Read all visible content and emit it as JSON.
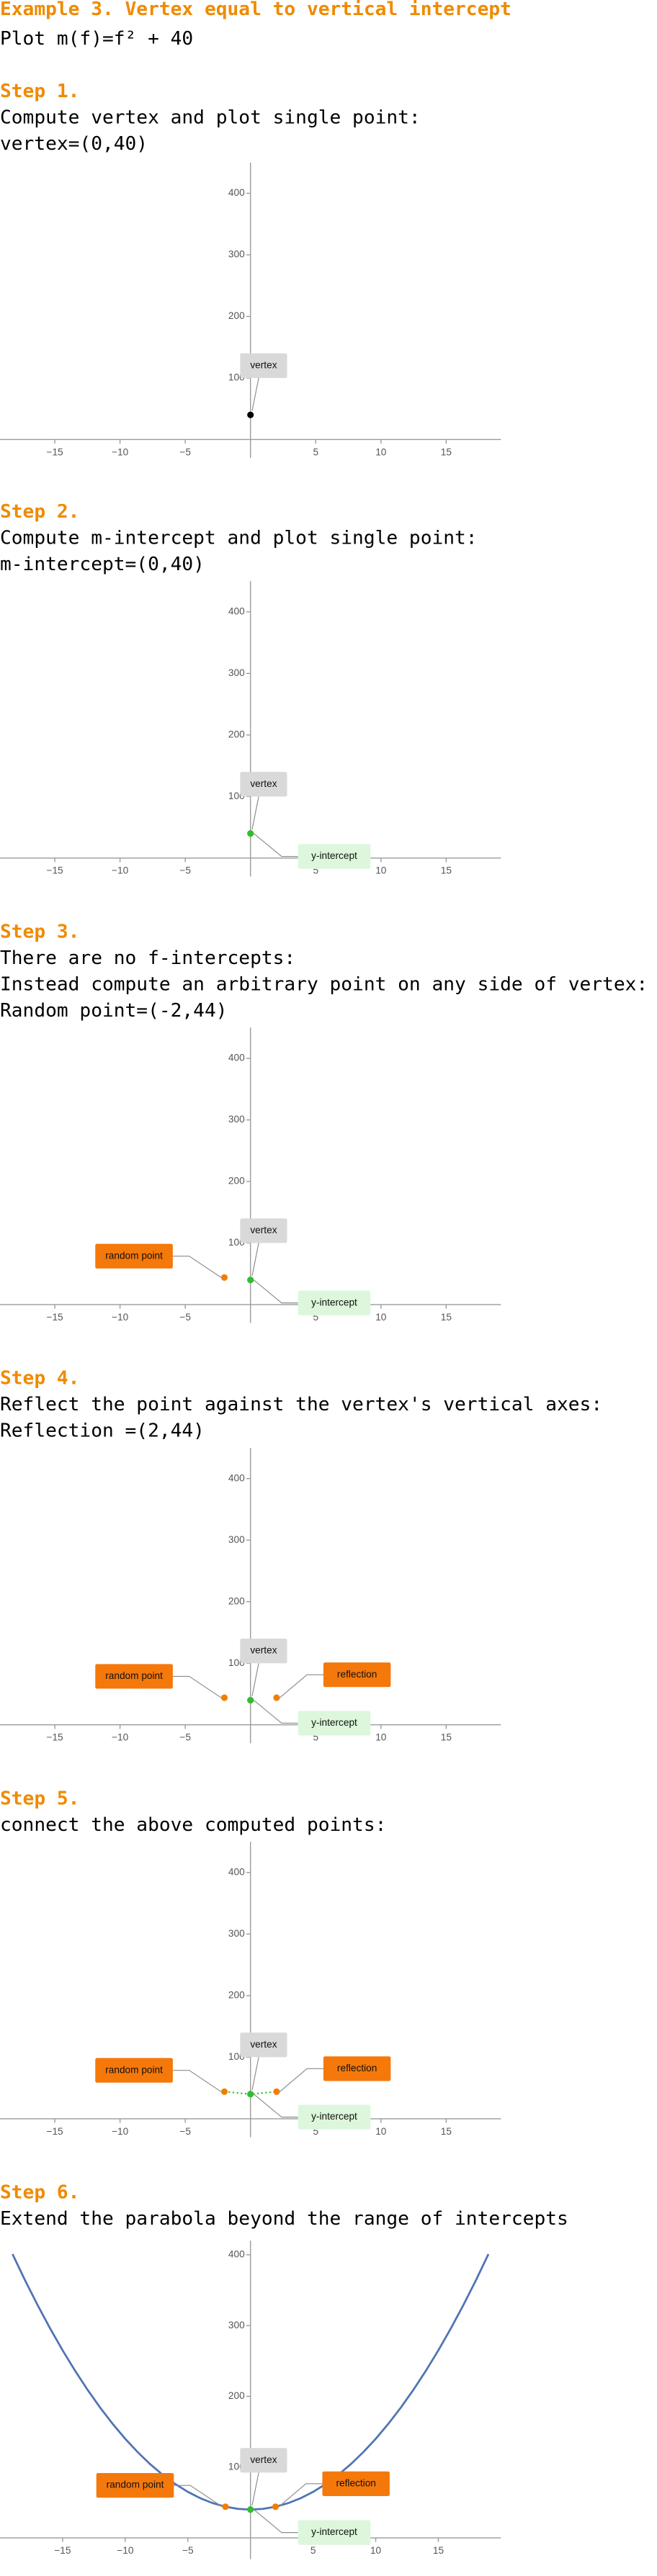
{
  "header": {
    "title": "Example 3. Vertex equal to vertical intercept",
    "subtitle": "Plot m(f)=f² + 40"
  },
  "steps": [
    {
      "heading": "Step 1.",
      "lines": [
        "Compute vertex and plot single point:",
        "vertex=(0,40)"
      ]
    },
    {
      "heading": "Step 2.",
      "lines": [
        "Compute m-intercept and plot single point:",
        "m-intercept=(0,40)"
      ]
    },
    {
      "heading": "Step 3.",
      "lines": [
        "There are no f-intercepts:",
        "Instead compute an arbitrary point on any side of vertex:",
        "Random point=(-2,44)"
      ]
    },
    {
      "heading": "Step 4.",
      "lines": [
        "Reflect the point against the vertex's vertical axes:",
        "Reflection =(2,44)"
      ]
    },
    {
      "heading": "Step 5.",
      "lines": [
        "connect the above computed points:"
      ]
    },
    {
      "heading": "Step 6.",
      "lines": [
        "Extend the parabola beyond the range of intercepts"
      ]
    }
  ],
  "chart_data": [
    {
      "type": "scatter",
      "xlim": [
        -19.2,
        19.2
      ],
      "ylim": [
        -30,
        450
      ],
      "xticks": [
        {
          "value": -15,
          "label": "−15"
        },
        {
          "value": -10,
          "label": "−10"
        },
        {
          "value": -5,
          "label": "−5"
        },
        5,
        10,
        15
      ],
      "yticks": [
        100,
        200,
        300,
        400
      ],
      "series": [
        {
          "name": "vertex",
          "color": "#000000",
          "x": [
            0
          ],
          "values": [
            40
          ]
        }
      ]
    },
    {
      "type": "scatter",
      "xlim": [
        -19.2,
        19.2
      ],
      "ylim": [
        -30,
        450
      ],
      "xticks": [
        {
          "value": -15,
          "label": "−15"
        },
        {
          "value": -10,
          "label": "−10"
        },
        {
          "value": -5,
          "label": "−5"
        },
        5,
        10,
        15
      ],
      "yticks": [
        100,
        200,
        300,
        400
      ],
      "series": [
        {
          "name": "vertex",
          "color": "#2fbf2f",
          "x": [
            0
          ],
          "values": [
            40
          ]
        },
        {
          "name": "y-intercept",
          "color": "#2fbf2f",
          "x": [
            0
          ],
          "values": [
            40
          ]
        }
      ]
    },
    {
      "type": "scatter",
      "xlim": [
        -19.2,
        19.2
      ],
      "ylim": [
        -30,
        450
      ],
      "xticks": [
        {
          "value": -15,
          "label": "−15"
        },
        {
          "value": -10,
          "label": "−10"
        },
        {
          "value": -5,
          "label": "−5"
        },
        5,
        10,
        15
      ],
      "yticks": [
        100,
        200,
        300,
        400
      ],
      "series": [
        {
          "name": "vertex",
          "color": "#2fbf2f",
          "x": [
            0
          ],
          "values": [
            40
          ]
        },
        {
          "name": "y-intercept",
          "color": "#2fbf2f",
          "x": [
            0
          ],
          "values": [
            40
          ]
        },
        {
          "name": "random point",
          "color": "#f07f00",
          "x": [
            -2
          ],
          "values": [
            44
          ]
        }
      ]
    },
    {
      "type": "scatter",
      "xlim": [
        -19.2,
        19.2
      ],
      "ylim": [
        -30,
        450
      ],
      "xticks": [
        {
          "value": -15,
          "label": "−15"
        },
        {
          "value": -10,
          "label": "−10"
        },
        {
          "value": -5,
          "label": "−5"
        },
        5,
        10,
        15
      ],
      "yticks": [
        100,
        200,
        300,
        400
      ],
      "series": [
        {
          "name": "vertex",
          "color": "#2fbf2f",
          "x": [
            0
          ],
          "values": [
            40
          ]
        },
        {
          "name": "y-intercept",
          "color": "#2fbf2f",
          "x": [
            0
          ],
          "values": [
            40
          ]
        },
        {
          "name": "random point",
          "color": "#f07f00",
          "x": [
            -2
          ],
          "values": [
            44
          ]
        },
        {
          "name": "reflection",
          "color": "#f07f00",
          "x": [
            2
          ],
          "values": [
            44
          ]
        }
      ]
    },
    {
      "type": "scatter",
      "xlim": [
        -19.2,
        19.2
      ],
      "ylim": [
        -30,
        450
      ],
      "xticks": [
        {
          "value": -15,
          "label": "−15"
        },
        {
          "value": -10,
          "label": "−10"
        },
        {
          "value": -5,
          "label": "−5"
        },
        5,
        10,
        15
      ],
      "yticks": [
        100,
        200,
        300,
        400
      ],
      "series": [
        {
          "name": "vertex",
          "color": "#2fbf2f",
          "x": [
            0
          ],
          "values": [
            40
          ]
        },
        {
          "name": "y-intercept",
          "color": "#2fbf2f",
          "x": [
            0
          ],
          "values": [
            40
          ]
        },
        {
          "name": "random point",
          "color": "#f07f00",
          "x": [
            -2
          ],
          "values": [
            44
          ]
        },
        {
          "name": "reflection",
          "color": "#f07f00",
          "x": [
            2
          ],
          "values": [
            44
          ]
        },
        {
          "kind": "line",
          "style": "dotted",
          "color": "#2fbf2f",
          "x": [
            -2,
            0,
            2
          ],
          "values": [
            44,
            40,
            44
          ]
        }
      ]
    },
    {
      "type": "scatter",
      "xlim": [
        -20,
        20
      ],
      "ylim": [
        -30,
        420
      ],
      "xticks": [
        {
          "value": -15,
          "label": "−15"
        },
        {
          "value": -10,
          "label": "−10"
        },
        {
          "value": -5,
          "label": "−5"
        },
        5,
        10,
        15
      ],
      "yticks": [
        100,
        200,
        300,
        400
      ],
      "series": [
        {
          "name": "vertex",
          "color": "#2fbf2f",
          "x": [
            0
          ],
          "values": [
            40
          ]
        },
        {
          "name": "y-intercept",
          "color": "#2fbf2f",
          "x": [
            0
          ],
          "values": [
            40
          ]
        },
        {
          "name": "random point",
          "color": "#f07f00",
          "x": [
            -2
          ],
          "values": [
            44
          ]
        },
        {
          "name": "reflection",
          "color": "#f07f00",
          "x": [
            2
          ],
          "values": [
            44
          ]
        },
        {
          "kind": "line",
          "style": "solid",
          "color": "#4f74b3",
          "x": [
            -19,
            -18,
            -17,
            -16,
            -15,
            -14,
            -13,
            -12,
            -11,
            -10,
            -9,
            -8,
            -7,
            -6,
            -5,
            -4,
            -3,
            -2,
            -1,
            0,
            1,
            2,
            3,
            4,
            5,
            6,
            7,
            8,
            9,
            10,
            11,
            12,
            13,
            14,
            15,
            16,
            17,
            18,
            19
          ],
          "values": [
            401,
            364,
            329,
            296,
            265,
            236,
            209,
            184,
            161,
            140,
            121,
            104,
            89,
            76,
            65,
            56,
            49,
            44,
            41,
            40,
            41,
            44,
            49,
            56,
            65,
            76,
            89,
            104,
            121,
            140,
            161,
            184,
            209,
            236,
            265,
            296,
            329,
            364,
            401
          ]
        }
      ]
    }
  ]
}
